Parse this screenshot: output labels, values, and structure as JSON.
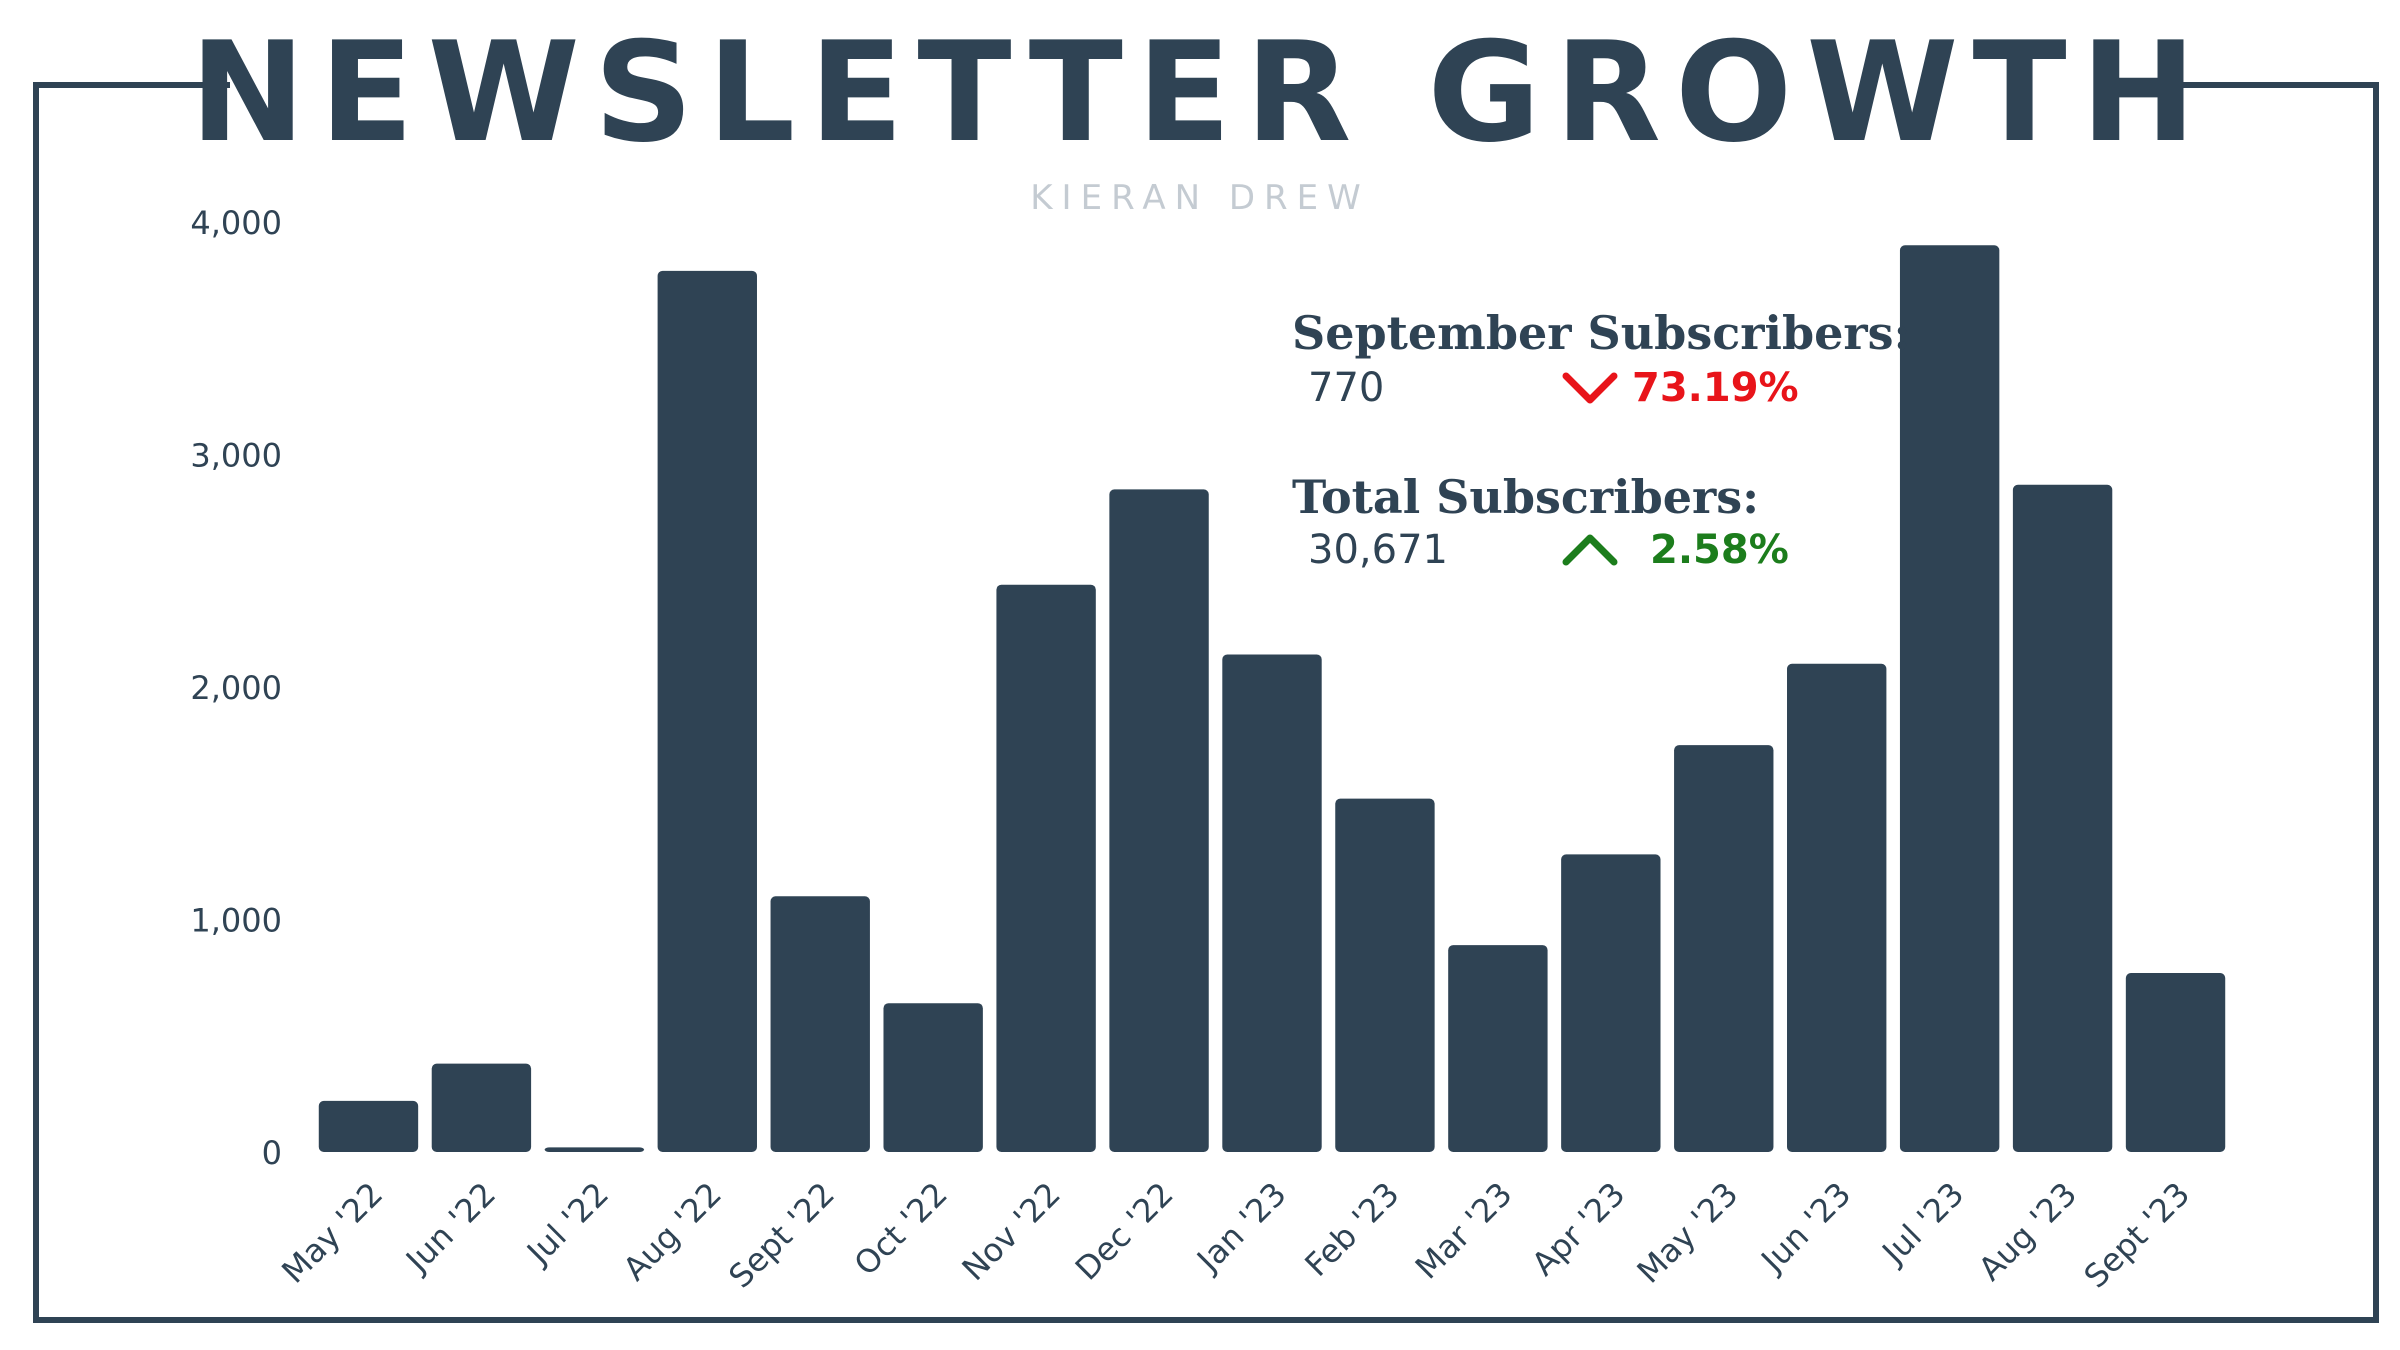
{
  "title": "NEWSLETTER GROWTH",
  "subtitle": "KIERAN DREW",
  "stats": {
    "month": {
      "label": "September Subscribers:",
      "value": "770",
      "change": "73.19%",
      "direction": "down",
      "color": "#e8141a"
    },
    "total": {
      "label": "Total Subscribers:",
      "value": "30,671",
      "change": "2.58%",
      "direction": "up",
      "color": "#1c7d1c"
    }
  },
  "colors": {
    "bar": "#2f4354",
    "frame": "#2f4354",
    "text": "#2f4354"
  },
  "chart_data": {
    "type": "bar",
    "categories": [
      "May '22",
      "Jun '22",
      "Jul '22",
      "Aug '22",
      "Sept '22",
      "Oct '22",
      "Nov '22",
      "Dec '22",
      "Jan '23",
      "Feb '23",
      "Mar '23",
      "Apr '23",
      "May '23",
      "Jun '23",
      "Jul '23",
      "Aug '23",
      "Sept '23"
    ],
    "values": [
      220,
      380,
      20,
      3790,
      1100,
      640,
      2440,
      2850,
      2140,
      1520,
      890,
      1280,
      1750,
      2100,
      3900,
      2870,
      770
    ],
    "title": "NEWSLETTER GROWTH",
    "subtitle": "KIERAN DREW",
    "ylim": [
      0,
      4000
    ],
    "yticks": [
      0,
      1000,
      2000,
      3000,
      4000
    ],
    "ytick_labels": [
      "0",
      "1,000",
      "2,000",
      "3,000",
      "4,000"
    ],
    "grid": false,
    "legend": "none"
  }
}
